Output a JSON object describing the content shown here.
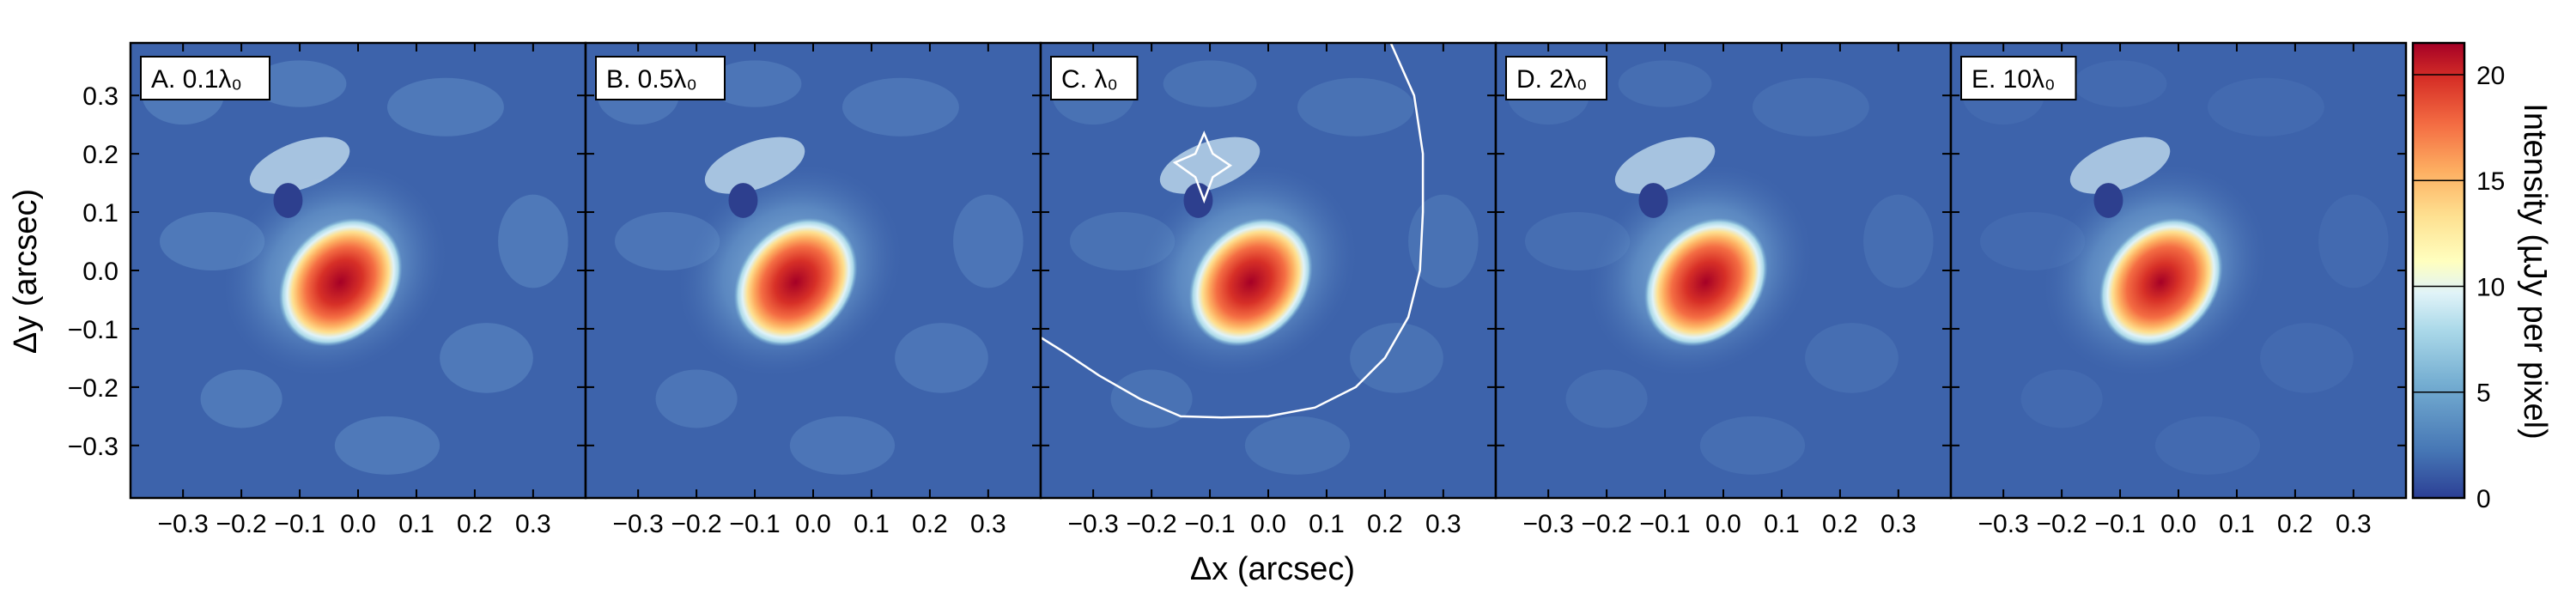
{
  "chart_data": {
    "type": "heatmap",
    "xlabel": "Δx (arcsec)",
    "ylabel": "Δy (arcsec)",
    "xlim": [
      -0.39,
      0.39
    ],
    "ylim": [
      -0.39,
      0.39
    ],
    "x_ticks": [
      -0.3,
      -0.2,
      -0.1,
      0.0,
      0.1,
      0.2,
      0.3
    ],
    "x_tick_labels": [
      "−0.3",
      "−0.2",
      "−0.1",
      "0.0",
      "0.1",
      "0.2",
      "0.3"
    ],
    "y_ticks": [
      0.3,
      0.2,
      0.1,
      0.0,
      -0.1,
      -0.2,
      -0.3
    ],
    "y_tick_labels": [
      "0.3",
      "0.2",
      "0.1",
      "0.0",
      "−0.1",
      "−0.2",
      "−0.3"
    ],
    "colorbar": {
      "label": "Intensity (µJy per pixel)",
      "range": [
        0,
        21.5
      ],
      "ticks": [
        0,
        5,
        10,
        15,
        20
      ],
      "tick_labels": [
        "0",
        "5",
        "10",
        "15",
        "20"
      ],
      "colormap": "RdYlBu_r"
    },
    "panels": [
      {
        "label": "A. 0.1λ₀",
        "regularization": 0.1,
        "peak_intensity": 21,
        "peak_position": [
          -0.03,
          -0.02
        ],
        "caustics": false
      },
      {
        "label": "B. 0.5λ₀",
        "regularization": 0.5,
        "peak_intensity": 20,
        "peak_position": [
          -0.03,
          -0.02
        ],
        "caustics": false
      },
      {
        "label": "C. λ₀",
        "regularization": 1.0,
        "peak_intensity": 20,
        "peak_position": [
          -0.03,
          -0.02
        ],
        "caustics": true
      },
      {
        "label": "D. 2λ₀",
        "regularization": 2.0,
        "peak_intensity": 19,
        "peak_position": [
          -0.03,
          -0.02
        ],
        "caustics": false
      },
      {
        "label": "E. 10λ₀",
        "regularization": 10.0,
        "peak_intensity": 17,
        "peak_position": [
          -0.03,
          -0.02
        ],
        "caustics": false
      }
    ],
    "caustic_inner": [
      [
        -0.16,
        0.185
      ],
      [
        -0.125,
        0.16
      ],
      [
        -0.11,
        0.12
      ],
      [
        -0.095,
        0.16
      ],
      [
        -0.065,
        0.18
      ],
      [
        -0.095,
        0.2
      ],
      [
        -0.11,
        0.235
      ],
      [
        -0.125,
        0.2
      ]
    ],
    "caustic_outer": [
      [
        0.21,
        0.39
      ],
      [
        0.25,
        0.3
      ],
      [
        0.265,
        0.2
      ],
      [
        0.265,
        0.1
      ],
      [
        0.26,
        0.0
      ],
      [
        0.24,
        -0.08
      ],
      [
        0.2,
        -0.15
      ],
      [
        0.15,
        -0.2
      ],
      [
        0.08,
        -0.235
      ],
      [
        0.0,
        -0.25
      ],
      [
        -0.08,
        -0.252
      ],
      [
        -0.15,
        -0.25
      ],
      [
        -0.22,
        -0.22
      ],
      [
        -0.29,
        -0.18
      ],
      [
        -0.35,
        -0.14
      ],
      [
        -0.39,
        -0.115
      ]
    ],
    "colors": {
      "background": "#3a62aa",
      "caustic_line": "#ffffff",
      "colormap_stops": [
        "#313695",
        "#4575b4",
        "#74add1",
        "#abd9e9",
        "#e0f3f8",
        "#ffffbf",
        "#fee090",
        "#fdae61",
        "#f46d43",
        "#d73027",
        "#a50026"
      ]
    }
  }
}
